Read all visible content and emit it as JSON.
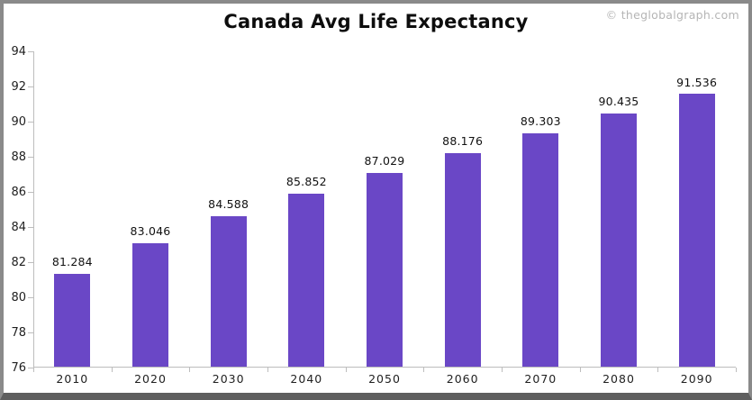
{
  "watermark": {
    "text": "© theglobalgraph.com"
  },
  "chart_data": {
    "type": "bar",
    "title": "Canada Avg Life Expectancy",
    "categories": [
      "2010",
      "2020",
      "2030",
      "2040",
      "2050",
      "2060",
      "2070",
      "2080",
      "2090"
    ],
    "values": [
      81.284,
      83.046,
      84.588,
      85.852,
      87.029,
      88.176,
      89.303,
      90.435,
      91.536
    ],
    "value_labels": [
      "81.284",
      "83.046",
      "84.588",
      "85.852",
      "87.029",
      "88.176",
      "89.303",
      "90.435",
      "91.536"
    ],
    "xlabel": "",
    "ylabel": "",
    "ylim": [
      76,
      94
    ],
    "yticks": [
      76,
      78,
      80,
      82,
      84,
      86,
      88,
      90,
      92,
      94
    ],
    "grid": false,
    "legend": "none",
    "bar_color": "#6a47c6"
  }
}
